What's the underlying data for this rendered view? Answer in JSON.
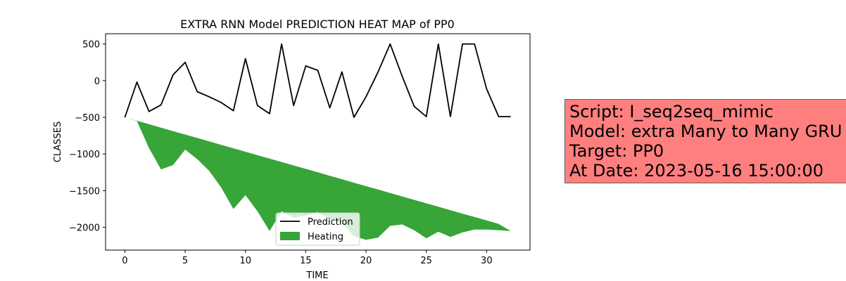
{
  "chart_data": {
    "type": "line",
    "title": "EXTRA RNN Model PREDICTION HEAT MAP of PP0",
    "xlabel": "TIME",
    "ylabel": "CLASSES",
    "xlim": [
      -1.6,
      33.6
    ],
    "ylim": [
      -2310,
      640
    ],
    "xticks": [
      0,
      5,
      10,
      15,
      20,
      25,
      30
    ],
    "yticks": [
      500,
      0,
      -500,
      -1000,
      -1500,
      -2000
    ],
    "grid": false,
    "legend_position": "lower-center",
    "series": [
      {
        "name": "Prediction",
        "kind": "line",
        "color": "#000000",
        "x": [
          0,
          1,
          2,
          3,
          4,
          5,
          6,
          7,
          8,
          9,
          10,
          11,
          12,
          13,
          14,
          15,
          16,
          17,
          18,
          19,
          20,
          21,
          22,
          23,
          24,
          25,
          26,
          27,
          28,
          29,
          30,
          31,
          32
        ],
        "values": [
          -500,
          -20,
          -420,
          -330,
          80,
          250,
          -150,
          -220,
          -300,
          -410,
          300,
          -340,
          -450,
          500,
          -340,
          200,
          140,
          -370,
          120,
          -500,
          -220,
          120,
          500,
          60,
          -350,
          -490,
          500,
          -490,
          500,
          500,
          -110,
          -490,
          -490
        ]
      },
      {
        "name": "Heating",
        "kind": "area",
        "color": "#2ca02c",
        "x": [
          0,
          1,
          2,
          3,
          4,
          5,
          6,
          7,
          8,
          9,
          10,
          11,
          12,
          13,
          14,
          15,
          16,
          17,
          18,
          19,
          20,
          21,
          22,
          23,
          24,
          25,
          26,
          27,
          28,
          29,
          30,
          31,
          32
        ],
        "upper": [
          -500,
          -547,
          -594,
          -641,
          -688,
          -734,
          -781,
          -828,
          -875,
          -922,
          -969,
          -1016,
          -1063,
          -1109,
          -1156,
          -1203,
          -1250,
          -1297,
          -1344,
          -1391,
          -1438,
          -1484,
          -1531,
          -1578,
          -1625,
          -1672,
          -1719,
          -1766,
          -1813,
          -1859,
          -1906,
          -1953,
          -2050
        ],
        "lower": [
          -500,
          -550,
          -920,
          -1210,
          -1150,
          -940,
          -1070,
          -1230,
          -1460,
          -1750,
          -1560,
          -1780,
          -2050,
          -1780,
          -1870,
          -1840,
          -1790,
          -1890,
          -1930,
          -2120,
          -2170,
          -2140,
          -1980,
          -1960,
          -2040,
          -2150,
          -2060,
          -2130,
          -2070,
          -2030,
          -2030,
          -2040,
          -2050
        ]
      }
    ]
  },
  "info": {
    "line1": "Script: I_seq2seq_mimic",
    "line2": "Model: extra Many to Many GRU",
    "line3": "Target: PP0",
    "line4": "At Date: 2023-05-16 15:00:00",
    "bg_color": "#ff7f7f"
  }
}
